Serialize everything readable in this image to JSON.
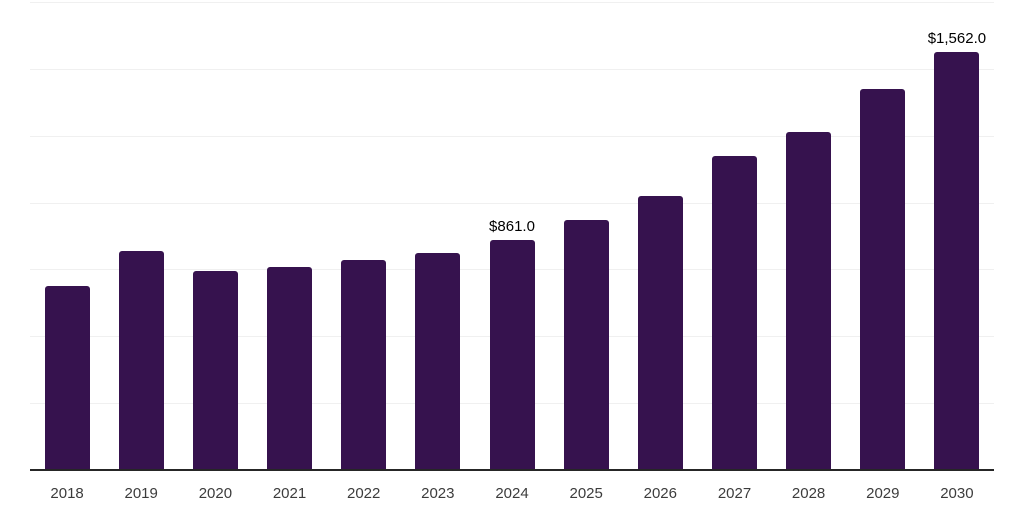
{
  "chart_data": {
    "type": "bar",
    "title": "",
    "xlabel": "",
    "ylabel": "",
    "categories": [
      "2018",
      "2019",
      "2020",
      "2021",
      "2022",
      "2023",
      "2024",
      "2025",
      "2026",
      "2027",
      "2028",
      "2029",
      "2030"
    ],
    "series": [
      {
        "name": "value",
        "values": [
          690,
          818,
          744,
          759,
          785,
          810,
          861,
          935,
          1025,
          1174,
          1264,
          1425,
          1562
        ]
      }
    ],
    "data_labels": [
      {
        "category": "2024",
        "text": "$861.0"
      },
      {
        "category": "2030",
        "text": "$1,562.0"
      }
    ],
    "ylim": [
      0,
      1750
    ],
    "gridline_step": 250,
    "grid": "horizontal-only",
    "legend": "none",
    "y_axis_tick_labels": "none",
    "colors": {
      "bar": "#36124e",
      "gridline": "#f0f0f0",
      "axis_line": "#262626",
      "tick_label": "#3c3c3c",
      "data_label": "#000000",
      "background": "#ffffff"
    }
  }
}
